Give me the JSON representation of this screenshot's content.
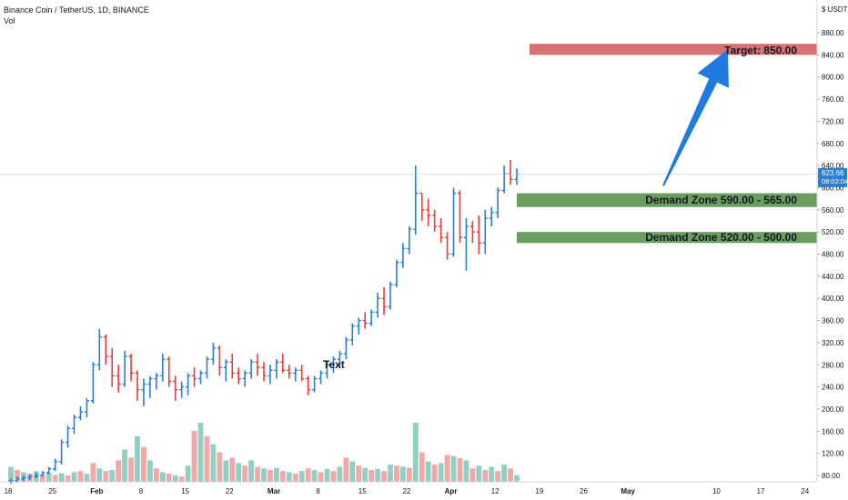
{
  "legend": {
    "symbol_line": "Binance Coin / TetherUS, 1D, BINANCE",
    "volume_label": "Vol"
  },
  "currency": "USDT",
  "price_axis": {
    "ticks": [
      "880.00",
      "840.00",
      "800.00",
      "760.00",
      "720.00",
      "680.00",
      "640.00",
      "600.00",
      "560.00",
      "520.00",
      "480.00",
      "440.00",
      "400.00",
      "360.00",
      "320.00",
      "280.00",
      "240.00",
      "200.00",
      "160.00",
      "120.00",
      "80.00"
    ]
  },
  "last_price": {
    "value": "623.66",
    "countdown": "08:02:04"
  },
  "time_axis": {
    "ticks": [
      "18",
      "25",
      "Feb",
      "8",
      "15",
      "22",
      "Mar",
      "8",
      "15",
      "22",
      "Apr",
      "12",
      "19",
      "26",
      "May",
      "10",
      "17",
      "24"
    ]
  },
  "annotations": {
    "target": "Target: 850.00",
    "demand_upper": "Demand Zone 590.00 - 565.00",
    "demand_lower": "Demand Zone 520.00 - 500.00",
    "text_note": "Text"
  },
  "colors": {
    "up": "#2a7fd4",
    "down": "#ef3b3b",
    "vol_up": "#8fd0c3",
    "vol_down": "#f3a7a7",
    "target_zone": "#d46a6a",
    "demand_zone": "#4f8d43",
    "arrow": "#1f7be0",
    "grid_line": "#c8ccd4"
  },
  "chart_data": {
    "type": "ohlc",
    "start_date": "2021-01-18",
    "series": [
      {
        "name": "price",
        "values": [
          [
            70,
            75,
            65,
            70
          ],
          [
            70,
            78,
            67,
            74
          ],
          [
            74,
            80,
            70,
            76
          ],
          [
            76,
            82,
            72,
            78
          ],
          [
            78,
            85,
            75,
            80
          ],
          [
            80,
            88,
            78,
            85
          ],
          [
            85,
            95,
            82,
            92
          ],
          [
            92,
            110,
            88,
            105
          ],
          [
            105,
            145,
            100,
            140
          ],
          [
            140,
            170,
            130,
            165
          ],
          [
            165,
            190,
            155,
            185
          ],
          [
            185,
            205,
            180,
            195
          ],
          [
            195,
            220,
            185,
            215
          ],
          [
            215,
            285,
            210,
            280
          ],
          [
            280,
            345,
            270,
            330
          ],
          [
            330,
            335,
            280,
            295
          ],
          [
            295,
            310,
            240,
            260
          ],
          [
            260,
            280,
            230,
            245
          ],
          [
            245,
            305,
            240,
            295
          ],
          [
            295,
            300,
            250,
            265
          ],
          [
            265,
            270,
            215,
            235
          ],
          [
            235,
            255,
            205,
            245
          ],
          [
            245,
            260,
            220,
            255
          ],
          [
            255,
            265,
            235,
            260
          ],
          [
            260,
            300,
            250,
            290
          ],
          [
            290,
            295,
            240,
            250
          ],
          [
            250,
            260,
            215,
            235
          ],
          [
            235,
            250,
            220,
            240
          ],
          [
            240,
            265,
            225,
            260
          ],
          [
            260,
            275,
            240,
            255
          ],
          [
            255,
            270,
            245,
            265
          ],
          [
            265,
            295,
            255,
            290
          ],
          [
            290,
            320,
            280,
            310
          ],
          [
            310,
            315,
            260,
            275
          ],
          [
            275,
            290,
            250,
            285
          ],
          [
            285,
            300,
            255,
            265
          ],
          [
            265,
            275,
            245,
            255
          ],
          [
            255,
            270,
            240,
            265
          ],
          [
            265,
            290,
            255,
            285
          ],
          [
            285,
            300,
            260,
            275
          ],
          [
            275,
            285,
            250,
            260
          ],
          [
            260,
            280,
            245,
            270
          ],
          [
            270,
            290,
            255,
            285
          ],
          [
            285,
            300,
            265,
            270
          ],
          [
            270,
            280,
            255,
            265
          ],
          [
            265,
            275,
            250,
            270
          ],
          [
            270,
            280,
            250,
            255
          ],
          [
            255,
            260,
            225,
            235
          ],
          [
            235,
            260,
            230,
            255
          ],
          [
            255,
            270,
            245,
            265
          ],
          [
            265,
            285,
            255,
            280
          ],
          [
            280,
            295,
            265,
            290
          ],
          [
            290,
            305,
            275,
            300
          ],
          [
            300,
            330,
            290,
            325
          ],
          [
            325,
            355,
            315,
            350
          ],
          [
            350,
            365,
            335,
            360
          ],
          [
            360,
            375,
            345,
            355
          ],
          [
            355,
            380,
            350,
            375
          ],
          [
            375,
            410,
            365,
            400
          ],
          [
            400,
            420,
            370,
            385
          ],
          [
            385,
            430,
            380,
            425
          ],
          [
            425,
            470,
            420,
            465
          ],
          [
            465,
            500,
            455,
            490
          ],
          [
            490,
            530,
            480,
            525
          ],
          [
            525,
            640,
            515,
            590
          ],
          [
            590,
            590,
            540,
            560
          ],
          [
            560,
            580,
            530,
            550
          ],
          [
            550,
            560,
            520,
            530
          ],
          [
            530,
            545,
            500,
            510
          ],
          [
            510,
            520,
            470,
            480
          ],
          [
            480,
            600,
            475,
            590
          ],
          [
            590,
            595,
            500,
            510
          ],
          [
            510,
            545,
            450,
            530
          ],
          [
            530,
            540,
            500,
            520
          ],
          [
            520,
            550,
            480,
            500
          ],
          [
            500,
            560,
            480,
            545
          ],
          [
            545,
            565,
            530,
            555
          ],
          [
            555,
            600,
            545,
            595
          ],
          [
            595,
            640,
            590,
            625
          ],
          [
            625,
            650,
            605,
            615
          ],
          [
            615,
            635,
            605,
            624
          ]
        ]
      },
      {
        "name": "Vol",
        "values": [
          [
            28,
            0
          ],
          [
            22,
            1
          ],
          [
            18,
            0
          ],
          [
            15,
            1
          ],
          [
            20,
            0
          ],
          [
            14,
            1
          ],
          [
            17,
            0
          ],
          [
            13,
            1
          ],
          [
            16,
            0
          ],
          [
            12,
            1
          ],
          [
            18,
            0
          ],
          [
            20,
            1
          ],
          [
            15,
            0
          ],
          [
            35,
            1
          ],
          [
            25,
            0
          ],
          [
            20,
            1
          ],
          [
            22,
            0
          ],
          [
            40,
            1
          ],
          [
            60,
            0
          ],
          [
            45,
            1
          ],
          [
            85,
            0
          ],
          [
            65,
            1
          ],
          [
            40,
            0
          ],
          [
            25,
            1
          ],
          [
            18,
            0
          ],
          [
            15,
            1
          ],
          [
            12,
            0
          ],
          [
            10,
            1
          ],
          [
            30,
            0
          ],
          [
            95,
            1
          ],
          [
            110,
            0
          ],
          [
            85,
            1
          ],
          [
            70,
            0
          ],
          [
            55,
            1
          ],
          [
            40,
            0
          ],
          [
            45,
            1
          ],
          [
            35,
            0
          ],
          [
            30,
            1
          ],
          [
            40,
            0
          ],
          [
            28,
            1
          ],
          [
            25,
            0
          ],
          [
            22,
            1
          ],
          [
            26,
            0
          ],
          [
            20,
            1
          ],
          [
            18,
            0
          ],
          [
            15,
            1
          ],
          [
            20,
            0
          ],
          [
            25,
            1
          ],
          [
            22,
            0
          ],
          [
            18,
            1
          ],
          [
            24,
            0
          ],
          [
            20,
            1
          ],
          [
            28,
            0
          ],
          [
            45,
            1
          ],
          [
            38,
            0
          ],
          [
            30,
            1
          ],
          [
            26,
            0
          ],
          [
            22,
            1
          ],
          [
            24,
            0
          ],
          [
            20,
            1
          ],
          [
            32,
            0
          ],
          [
            30,
            1
          ],
          [
            28,
            0
          ],
          [
            26,
            1
          ],
          [
            110,
            0
          ],
          [
            55,
            1
          ],
          [
            38,
            0
          ],
          [
            32,
            1
          ],
          [
            35,
            0
          ],
          [
            50,
            1
          ],
          [
            48,
            0
          ],
          [
            44,
            1
          ],
          [
            40,
            0
          ],
          [
            25,
            1
          ],
          [
            30,
            0
          ],
          [
            22,
            1
          ],
          [
            28,
            0
          ],
          [
            20,
            1
          ],
          [
            32,
            0
          ],
          [
            25,
            1
          ],
          [
            12,
            0
          ]
        ]
      }
    ],
    "price_range": [
      60,
      900
    ],
    "volume_panel_range": [
      0,
      110
    ],
    "zones": [
      {
        "label": "Target: 850.00",
        "low": 840,
        "high": 860
      },
      {
        "label": "Demand Zone 590.00 - 565.00",
        "low": 565,
        "high": 590
      },
      {
        "label": "Demand Zone 520.00 - 500.00",
        "low": 500,
        "high": 520
      }
    ],
    "projection": {
      "from_price": 620,
      "to_price": 850
    },
    "grid": false
  }
}
